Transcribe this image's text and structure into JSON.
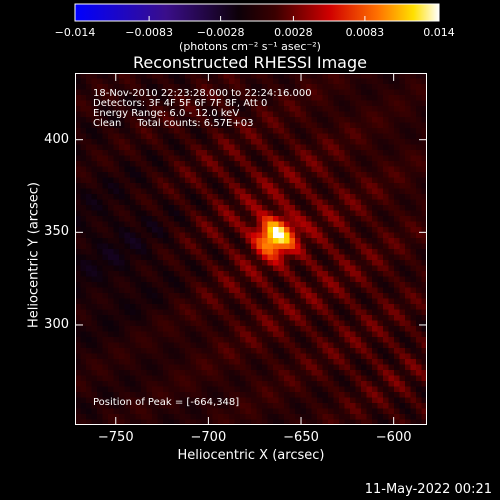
{
  "chart_data": {
    "type": "heatmap",
    "title": "Reconstructed RHESSI Image",
    "xlabel": "Heliocentric X (arcsec)",
    "ylabel": "Heliocentric Y (arcsec)",
    "xlim": [
      -772,
      -582
    ],
    "ylim": [
      246,
      436
    ],
    "x_ticks": [
      -750,
      -700,
      -650,
      -600
    ],
    "y_ticks": [
      300,
      350,
      400
    ],
    "peak": {
      "x": -664,
      "y": 348
    },
    "colorbar": {
      "min": -0.014,
      "max": 0.014,
      "tick_labels": [
        "-0.014",
        "-0.0083",
        "-0.0028",
        "0.0028",
        "0.0083",
        "0.014"
      ],
      "units_label": "(photons cm⁻² s⁻¹ asec⁻²)",
      "colors": [
        "#0000ff",
        "#400080",
        "#000000",
        "#ff0000",
        "#ffff00",
        "#ffffff"
      ]
    },
    "annotations": [
      "18-Nov-2010 22:23:28.000 to 22:24:16.000",
      "Detectors: 3F 4F 5F 6F 7F 8F, Att 0",
      "Energy Range: 6.0 - 12.0 keV",
      "Clean     Total counts: 6.57E+03"
    ],
    "peak_label": "Position of Peak = [-664,348]"
  },
  "timestamp": "11-May-2022 00:21"
}
